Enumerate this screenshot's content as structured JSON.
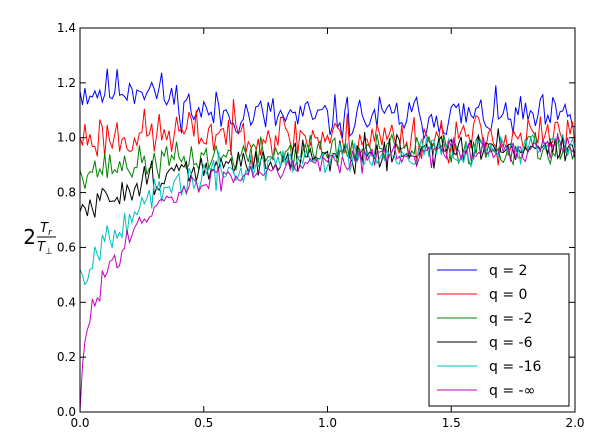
{
  "chart_data": {
    "type": "line",
    "ylabel": "2 T_r / T_⊥",
    "ylabel_parts": {
      "coef": "2",
      "num": "T",
      "num_sub": "r",
      "den": "T",
      "den_sub": "⊥"
    },
    "xlim": [
      0.0,
      2.0
    ],
    "ylim": [
      0.0,
      1.4
    ],
    "xticks": [
      "0.0",
      "0.5",
      "1.0",
      "1.5",
      "2.0"
    ],
    "yticks": [
      "0.0",
      "0.2",
      "0.4",
      "0.6",
      "0.8",
      "1.0",
      "1.2",
      "1.4"
    ],
    "grid": false,
    "legend_position": "lower-right",
    "sample_count": 201,
    "series": [
      {
        "name": "q = 2",
        "color": "#0000ff",
        "anchors": [
          [
            0.0,
            1.17
          ],
          [
            0.1,
            1.17
          ],
          [
            0.25,
            1.19
          ],
          [
            0.5,
            1.09
          ],
          [
            1.0,
            1.07
          ],
          [
            1.5,
            1.08
          ],
          [
            2.0,
            1.07
          ]
        ],
        "noise": 0.04,
        "seed": 11
      },
      {
        "name": "q = 0",
        "color": "#ff0000",
        "anchors": [
          [
            0.0,
            1.0
          ],
          [
            0.25,
            1.01
          ],
          [
            0.5,
            1.02
          ],
          [
            1.0,
            1.0
          ],
          [
            1.5,
            1.0
          ],
          [
            2.0,
            1.0
          ]
        ],
        "noise": 0.045,
        "seed": 23
      },
      {
        "name": "q = -2",
        "color": "#008000",
        "anchors": [
          [
            0.0,
            0.88
          ],
          [
            0.2,
            0.9
          ],
          [
            0.5,
            0.93
          ],
          [
            1.0,
            0.95
          ],
          [
            1.5,
            0.96
          ],
          [
            2.0,
            0.96
          ]
        ],
        "noise": 0.03,
        "seed": 37
      },
      {
        "name": "q = -6",
        "color": "#000000",
        "anchors": [
          [
            0.0,
            0.73
          ],
          [
            0.05,
            0.74
          ],
          [
            0.15,
            0.8
          ],
          [
            0.3,
            0.86
          ],
          [
            0.5,
            0.88
          ],
          [
            0.75,
            0.92
          ],
          [
            1.0,
            0.94
          ],
          [
            1.5,
            0.96
          ],
          [
            2.0,
            0.97
          ]
        ],
        "noise": 0.03,
        "seed": 51
      },
      {
        "name": "q = -16",
        "color": "#00bfbf",
        "anchors": [
          [
            0.0,
            0.52
          ],
          [
            0.02,
            0.5
          ],
          [
            0.1,
            0.64
          ],
          [
            0.2,
            0.72
          ],
          [
            0.3,
            0.78
          ],
          [
            0.4,
            0.83
          ],
          [
            0.5,
            0.86
          ],
          [
            0.75,
            0.9
          ],
          [
            1.0,
            0.93
          ],
          [
            1.5,
            0.96
          ],
          [
            2.0,
            0.97
          ]
        ],
        "noise": 0.03,
        "seed": 67
      },
      {
        "name": "q = -∞",
        "color": "#bf00bf",
        "anchors": [
          [
            0.0,
            0.0
          ],
          [
            0.01,
            0.16
          ],
          [
            0.03,
            0.3
          ],
          [
            0.06,
            0.4
          ],
          [
            0.1,
            0.5
          ],
          [
            0.15,
            0.58
          ],
          [
            0.2,
            0.65
          ],
          [
            0.27,
            0.7
          ],
          [
            0.35,
            0.77
          ],
          [
            0.45,
            0.82
          ],
          [
            0.55,
            0.85
          ],
          [
            0.7,
            0.88
          ],
          [
            0.85,
            0.9
          ],
          [
            1.0,
            0.92
          ],
          [
            1.5,
            0.95
          ],
          [
            2.0,
            0.96
          ]
        ],
        "noise": 0.022,
        "seed": 83
      }
    ]
  }
}
